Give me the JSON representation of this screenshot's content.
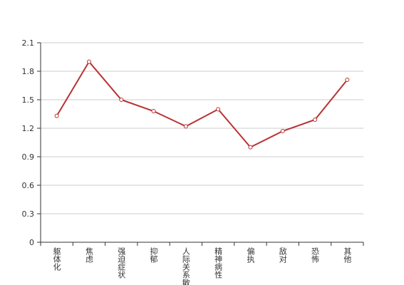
{
  "chart_data": {
    "type": "line",
    "categories": [
      "躯体化",
      "焦虑",
      "强迫症状",
      "抑郁",
      "人际关系敏感",
      "精神病性",
      "偏执",
      "敌对",
      "恐怖",
      "其他"
    ],
    "series": [
      {
        "color": "#b83232",
        "values": [
          1.33,
          1.9,
          1.5,
          1.38,
          1.22,
          1.4,
          1.0,
          1.17,
          1.29,
          1.71
        ]
      }
    ],
    "ylim": [
      0,
      2.1
    ],
    "yticks": [
      0,
      0.3,
      0.6,
      0.9,
      1.2,
      1.5,
      1.8,
      2.1
    ],
    "grid": true
  }
}
